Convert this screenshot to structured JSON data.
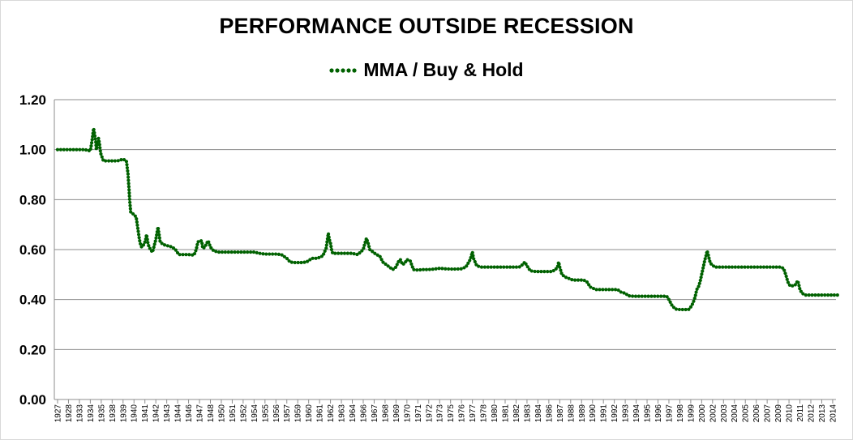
{
  "chart_data": {
    "type": "line",
    "title": "PERFORMANCE OUTSIDE RECESSION",
    "xlabel": "",
    "ylabel": "",
    "ylim": [
      0,
      1.2
    ],
    "y_ticks": [
      "0.00",
      "0.20",
      "0.40",
      "0.60",
      "0.80",
      "1.00",
      "1.20"
    ],
    "x_ticks": [
      "1927",
      "1928",
      "1933",
      "1934",
      "1935",
      "1938",
      "1939",
      "1940",
      "1941",
      "1942",
      "1943",
      "1944",
      "1946",
      "1947",
      "1948",
      "1950",
      "1951",
      "1952",
      "1954",
      "1955",
      "1956",
      "1957",
      "1959",
      "1960",
      "1961",
      "1962",
      "1963",
      "1964",
      "1966",
      "1967",
      "1968",
      "1969",
      "1970",
      "1971",
      "1972",
      "1973",
      "1975",
      "1976",
      "1977",
      "1978",
      "1980",
      "1981",
      "1982",
      "1983",
      "1984",
      "1986",
      "1987",
      "1988",
      "1989",
      "1990",
      "1991",
      "1992",
      "1993",
      "1994",
      "1995",
      "1996",
      "1997",
      "1998",
      "1999",
      "2000",
      "2002",
      "2003",
      "2004",
      "2005",
      "2006",
      "2007",
      "2009",
      "2010",
      "2011",
      "2012",
      "2013",
      "2014"
    ],
    "grid": true,
    "legend_position": "top",
    "series": [
      {
        "name": "MMA / Buy & Hold",
        "color": "#006100",
        "marker": "dotted",
        "x_units": "index into x_ticks (label positions)",
        "points": [
          [
            0,
            1.0
          ],
          [
            0.5,
            1.0
          ],
          [
            1,
            1.0
          ],
          [
            1.5,
            1.0
          ],
          [
            2,
            1.0
          ],
          [
            2.5,
            1.0
          ],
          [
            3,
            0.995
          ],
          [
            3.1,
            1.02
          ],
          [
            3.2,
            1.05
          ],
          [
            3.3,
            1.085
          ],
          [
            3.4,
            1.06
          ],
          [
            3.5,
            1.03
          ],
          [
            3.55,
            1.0
          ],
          [
            3.65,
            1.015
          ],
          [
            3.75,
            1.045
          ],
          [
            3.85,
            1.02
          ],
          [
            3.95,
            0.985
          ],
          [
            4.2,
            0.955
          ],
          [
            4.6,
            0.955
          ],
          [
            5,
            0.955
          ],
          [
            5.5,
            0.955
          ],
          [
            6,
            0.962
          ],
          [
            6.3,
            0.955
          ],
          [
            6.35,
            0.94
          ],
          [
            6.4,
            0.92
          ],
          [
            6.45,
            0.905
          ],
          [
            6.5,
            0.87
          ],
          [
            6.55,
            0.84
          ],
          [
            6.6,
            0.8
          ],
          [
            6.7,
            0.75
          ],
          [
            7,
            0.74
          ],
          [
            7.2,
            0.73
          ],
          [
            7.3,
            0.7
          ],
          [
            7.4,
            0.67
          ],
          [
            7.5,
            0.64
          ],
          [
            7.6,
            0.62
          ],
          [
            7.7,
            0.61
          ],
          [
            7.9,
            0.62
          ],
          [
            8.05,
            0.635
          ],
          [
            8.15,
            0.66
          ],
          [
            8.3,
            0.62
          ],
          [
            8.5,
            0.6
          ],
          [
            8.7,
            0.59
          ],
          [
            8.85,
            0.615
          ],
          [
            9.0,
            0.64
          ],
          [
            9.1,
            0.665
          ],
          [
            9.2,
            0.69
          ],
          [
            9.4,
            0.63
          ],
          [
            9.7,
            0.62
          ],
          [
            10.1,
            0.615
          ],
          [
            10.5,
            0.61
          ],
          [
            10.8,
            0.6
          ],
          [
            11.1,
            0.58
          ],
          [
            11.5,
            0.58
          ],
          [
            12,
            0.58
          ],
          [
            12.5,
            0.578
          ],
          [
            12.7,
            0.6
          ],
          [
            12.85,
            0.63
          ],
          [
            13,
            0.635
          ],
          [
            13.2,
            0.635
          ],
          [
            13.3,
            0.605
          ],
          [
            13.5,
            0.61
          ],
          [
            13.65,
            0.625
          ],
          [
            13.8,
            0.635
          ],
          [
            14.0,
            0.61
          ],
          [
            14.3,
            0.595
          ],
          [
            14.7,
            0.59
          ],
          [
            15,
            0.59
          ],
          [
            15.5,
            0.59
          ],
          [
            16,
            0.59
          ],
          [
            16.5,
            0.59
          ],
          [
            17,
            0.59
          ],
          [
            17.5,
            0.59
          ],
          [
            18,
            0.59
          ],
          [
            18.5,
            0.585
          ],
          [
            19,
            0.582
          ],
          [
            19.5,
            0.582
          ],
          [
            20,
            0.582
          ],
          [
            20.5,
            0.58
          ],
          [
            21,
            0.565
          ],
          [
            21.3,
            0.55
          ],
          [
            21.8,
            0.548
          ],
          [
            22.3,
            0.548
          ],
          [
            22.8,
            0.55
          ],
          [
            23.3,
            0.565
          ],
          [
            23.8,
            0.565
          ],
          [
            24.3,
            0.575
          ],
          [
            24.6,
            0.605
          ],
          [
            24.7,
            0.635
          ],
          [
            24.8,
            0.665
          ],
          [
            24.9,
            0.64
          ],
          [
            25.0,
            0.625
          ],
          [
            25.1,
            0.6
          ],
          [
            25.2,
            0.585
          ],
          [
            25.6,
            0.585
          ],
          [
            26,
            0.585
          ],
          [
            26.5,
            0.585
          ],
          [
            27,
            0.585
          ],
          [
            27.5,
            0.58
          ],
          [
            28,
            0.6
          ],
          [
            28.15,
            0.625
          ],
          [
            28.3,
            0.645
          ],
          [
            28.45,
            0.625
          ],
          [
            28.6,
            0.6
          ],
          [
            28.9,
            0.59
          ],
          [
            29.2,
            0.58
          ],
          [
            29.5,
            0.575
          ],
          [
            29.8,
            0.55
          ],
          [
            30.1,
            0.54
          ],
          [
            30.4,
            0.53
          ],
          [
            30.7,
            0.52
          ],
          [
            31,
            0.53
          ],
          [
            31.2,
            0.55
          ],
          [
            31.4,
            0.56
          ],
          [
            31.6,
            0.54
          ],
          [
            31.8,
            0.545
          ],
          [
            32.0,
            0.56
          ],
          [
            32.3,
            0.555
          ],
          [
            32.6,
            0.52
          ],
          [
            33,
            0.518
          ],
          [
            33.5,
            0.52
          ],
          [
            34,
            0.52
          ],
          [
            34.5,
            0.522
          ],
          [
            35,
            0.525
          ],
          [
            35.5,
            0.523
          ],
          [
            36,
            0.522
          ],
          [
            36.5,
            0.522
          ],
          [
            37,
            0.523
          ],
          [
            37.4,
            0.53
          ],
          [
            37.6,
            0.545
          ],
          [
            37.8,
            0.56
          ],
          [
            37.9,
            0.575
          ],
          [
            38.0,
            0.59
          ],
          [
            38.1,
            0.565
          ],
          [
            38.4,
            0.535
          ],
          [
            38.8,
            0.53
          ],
          [
            39.3,
            0.53
          ],
          [
            39.8,
            0.53
          ],
          [
            40.3,
            0.53
          ],
          [
            40.8,
            0.53
          ],
          [
            41.3,
            0.53
          ],
          [
            41.8,
            0.53
          ],
          [
            42.3,
            0.53
          ],
          [
            42.6,
            0.54
          ],
          [
            42.8,
            0.55
          ],
          [
            43.0,
            0.535
          ],
          [
            43.3,
            0.515
          ],
          [
            43.8,
            0.512
          ],
          [
            44.3,
            0.512
          ],
          [
            44.8,
            0.512
          ],
          [
            45.3,
            0.512
          ],
          [
            45.6,
            0.52
          ],
          [
            45.8,
            0.53
          ],
          [
            45.9,
            0.55
          ],
          [
            46.0,
            0.53
          ],
          [
            46.2,
            0.5
          ],
          [
            46.5,
            0.49
          ],
          [
            46.8,
            0.485
          ],
          [
            47.2,
            0.478
          ],
          [
            47.7,
            0.478
          ],
          [
            48.2,
            0.478
          ],
          [
            48.5,
            0.47
          ],
          [
            48.8,
            0.45
          ],
          [
            49.3,
            0.44
          ],
          [
            49.8,
            0.44
          ],
          [
            50.3,
            0.44
          ],
          [
            50.8,
            0.44
          ],
          [
            51.3,
            0.44
          ],
          [
            51.6,
            0.43
          ],
          [
            52,
            0.425
          ],
          [
            52.3,
            0.415
          ],
          [
            52.8,
            0.413
          ],
          [
            53.3,
            0.413
          ],
          [
            53.8,
            0.413
          ],
          [
            54.3,
            0.413
          ],
          [
            54.8,
            0.413
          ],
          [
            55.3,
            0.413
          ],
          [
            55.8,
            0.413
          ],
          [
            56.0,
            0.4
          ],
          [
            56.3,
            0.375
          ],
          [
            56.6,
            0.362
          ],
          [
            57,
            0.36
          ],
          [
            57.4,
            0.36
          ],
          [
            57.8,
            0.36
          ],
          [
            58.0,
            0.37
          ],
          [
            58.2,
            0.385
          ],
          [
            58.4,
            0.41
          ],
          [
            58.55,
            0.44
          ],
          [
            58.7,
            0.45
          ],
          [
            58.85,
            0.47
          ],
          [
            59,
            0.5
          ],
          [
            59.1,
            0.52
          ],
          [
            59.2,
            0.54
          ],
          [
            59.3,
            0.56
          ],
          [
            59.4,
            0.575
          ],
          [
            59.5,
            0.595
          ],
          [
            59.6,
            0.58
          ],
          [
            59.7,
            0.56
          ],
          [
            59.8,
            0.545
          ],
          [
            60.2,
            0.53
          ],
          [
            60.7,
            0.53
          ],
          [
            61.2,
            0.53
          ],
          [
            61.7,
            0.53
          ],
          [
            62.2,
            0.53
          ],
          [
            62.7,
            0.53
          ],
          [
            63.2,
            0.53
          ],
          [
            63.7,
            0.53
          ],
          [
            64.2,
            0.53
          ],
          [
            64.7,
            0.53
          ],
          [
            65.2,
            0.53
          ],
          [
            65.7,
            0.53
          ],
          [
            66.2,
            0.53
          ],
          [
            66.5,
            0.525
          ],
          [
            66.7,
            0.5
          ],
          [
            66.9,
            0.47
          ],
          [
            67.1,
            0.455
          ],
          [
            67.4,
            0.455
          ],
          [
            67.6,
            0.46
          ],
          [
            67.8,
            0.475
          ],
          [
            67.9,
            0.46
          ],
          [
            68.0,
            0.44
          ],
          [
            68.2,
            0.425
          ],
          [
            68.5,
            0.418
          ],
          [
            69,
            0.418
          ],
          [
            69.5,
            0.418
          ],
          [
            70,
            0.418
          ],
          [
            70.5,
            0.418
          ],
          [
            71,
            0.418
          ],
          [
            71.5,
            0.418
          ]
        ]
      }
    ]
  }
}
